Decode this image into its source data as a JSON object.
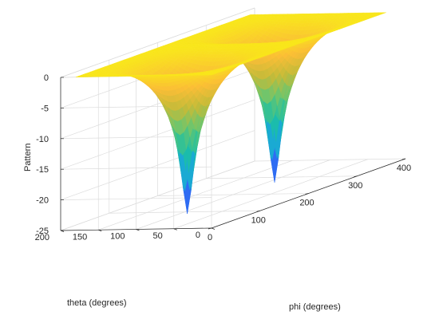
{
  "chart_data": {
    "type": "surface",
    "title": "",
    "xlabel": "phi (degrees)",
    "ylabel": "theta (degrees)",
    "zlabel": "Pattern",
    "x_range": [
      0,
      400
    ],
    "y_range": [
      0,
      200
    ],
    "z_range": [
      -25,
      0
    ],
    "x_ticks": [
      "0",
      "100",
      "200",
      "300",
      "400"
    ],
    "y_ticks": [
      "0",
      "50",
      "100",
      "150",
      "200"
    ],
    "z_ticks": [
      "0",
      "-5",
      "-10",
      "-15",
      "-20",
      "-25"
    ],
    "surface": {
      "phi_domain": [
        0,
        360
      ],
      "theta_domain": [
        0,
        180
      ],
      "floor": -25,
      "description_values": {
        "max": 0,
        "min_approx": -25,
        "nulls": [
          {
            "phi": 90,
            "theta": 90
          },
          {
            "phi": 270,
            "theta": 90
          }
        ]
      }
    },
    "grid": true,
    "colormap": "parula",
    "colormap_stops": [
      "#3e26a8",
      "#2f6bf3",
      "#1aa5dd",
      "#1bbfa5",
      "#68c670",
      "#c4bb39",
      "#fbbe36",
      "#f9e61b"
    ]
  }
}
